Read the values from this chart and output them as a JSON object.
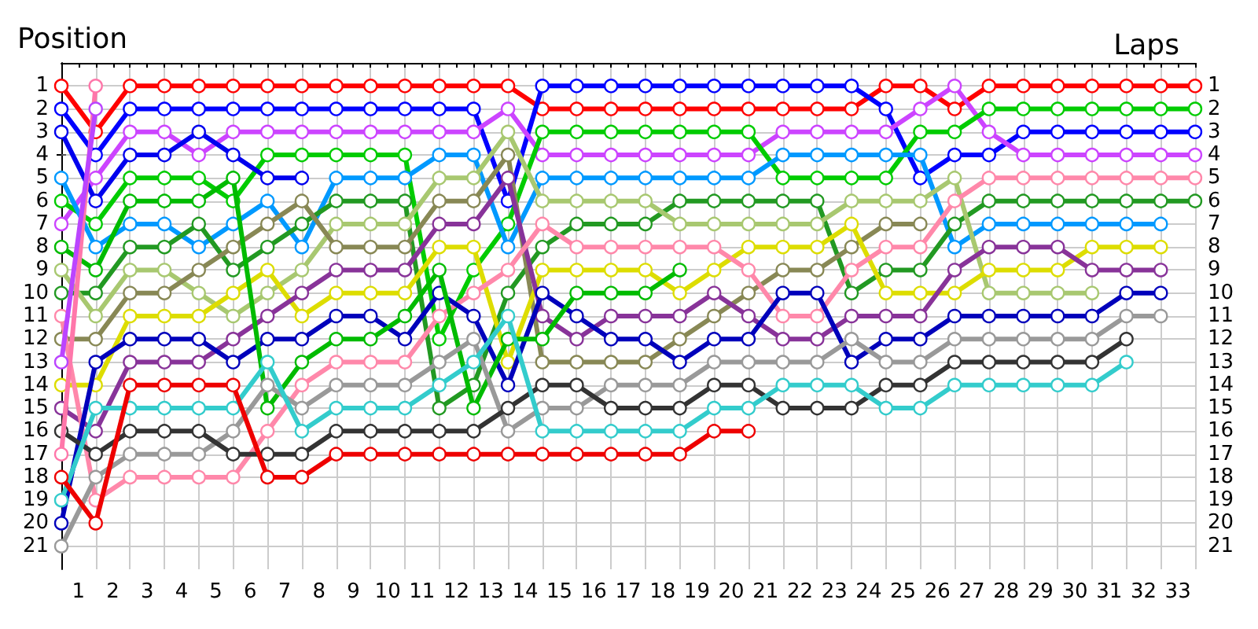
{
  "chart_data": {
    "type": "line",
    "xlabel": "Laps",
    "ylabel": "Position",
    "marker": "circle",
    "line_style": "solid",
    "grid": true,
    "x": [
      0,
      1,
      2,
      3,
      4,
      5,
      6,
      7,
      8,
      9,
      10,
      11,
      12,
      13,
      14,
      15,
      16,
      17,
      18,
      19,
      20,
      21,
      22,
      23,
      24,
      25,
      26,
      27,
      28,
      29,
      30,
      31,
      32,
      33
    ],
    "xlim": [
      0,
      33
    ],
    "xticks": [
      {
        "value": 0,
        "label": null
      },
      {
        "value": 0.5,
        "label": "1"
      },
      {
        "value": 1,
        "label": null
      },
      {
        "value": 1.5,
        "label": "2"
      },
      {
        "value": 2,
        "label": null
      },
      {
        "value": 2.5,
        "label": "3"
      },
      {
        "value": 3,
        "label": null
      },
      {
        "value": 3.5,
        "label": "4"
      },
      {
        "value": 4,
        "label": null
      },
      {
        "value": 4.5,
        "label": "5"
      },
      {
        "value": 5,
        "label": null
      },
      {
        "value": 5.5,
        "label": "6"
      },
      {
        "value": 6,
        "label": null
      },
      {
        "value": 6.5,
        "label": "7"
      },
      {
        "value": 7,
        "label": null
      },
      {
        "value": 7.5,
        "label": "8"
      },
      {
        "value": 8,
        "label": null
      },
      {
        "value": 8.5,
        "label": "9"
      },
      {
        "value": 9,
        "label": null
      },
      {
        "value": 9.5,
        "label": "10"
      },
      {
        "value": 10,
        "label": null
      },
      {
        "value": 10.5,
        "label": "11"
      },
      {
        "value": 11,
        "label": null
      },
      {
        "value": 11.5,
        "label": "12"
      },
      {
        "value": 12,
        "label": null
      },
      {
        "value": 12.5,
        "label": "13"
      },
      {
        "value": 13,
        "label": null
      },
      {
        "value": 13.5,
        "label": "14"
      },
      {
        "value": 14,
        "label": null
      },
      {
        "value": 14.5,
        "label": "15"
      },
      {
        "value": 15,
        "label": null
      },
      {
        "value": 15.5,
        "label": "16"
      },
      {
        "value": 16,
        "label": null
      },
      {
        "value": 16.5,
        "label": "17"
      },
      {
        "value": 17,
        "label": null
      },
      {
        "value": 17.5,
        "label": "18"
      },
      {
        "value": 18,
        "label": null
      },
      {
        "value": 18.5,
        "label": "19"
      },
      {
        "value": 19,
        "label": null
      },
      {
        "value": 19.5,
        "label": "20"
      },
      {
        "value": 20,
        "label": null
      },
      {
        "value": 20.5,
        "label": "21"
      },
      {
        "value": 21,
        "label": null
      },
      {
        "value": 21.5,
        "label": "22"
      },
      {
        "value": 22,
        "label": null
      },
      {
        "value": 22.5,
        "label": "23"
      },
      {
        "value": 23,
        "label": null
      },
      {
        "value": 23.5,
        "label": "24"
      },
      {
        "value": 24,
        "label": null
      },
      {
        "value": 24.5,
        "label": "25"
      },
      {
        "value": 25,
        "label": null
      },
      {
        "value": 25.5,
        "label": "26"
      },
      {
        "value": 26,
        "label": null
      },
      {
        "value": 26.5,
        "label": "27"
      },
      {
        "value": 27,
        "label": null
      },
      {
        "value": 27.5,
        "label": "28"
      },
      {
        "value": 28,
        "label": null
      },
      {
        "value": 28.5,
        "label": "29"
      },
      {
        "value": 29,
        "label": null
      },
      {
        "value": 29.5,
        "label": "30"
      },
      {
        "value": 30,
        "label": null
      },
      {
        "value": 30.5,
        "label": "31"
      },
      {
        "value": 31,
        "label": null
      },
      {
        "value": 31.5,
        "label": "32"
      },
      {
        "value": 32,
        "label": null
      },
      {
        "value": 32.5,
        "label": "33"
      },
      {
        "value": 33,
        "label": null
      }
    ],
    "ylim": [
      22,
      0
    ],
    "yticks": [
      1,
      2,
      3,
      4,
      5,
      6,
      7,
      8,
      9,
      10,
      11,
      12,
      13,
      14,
      15,
      16,
      17,
      18,
      19,
      20,
      21
    ],
    "y2lim": [
      22,
      0
    ],
    "y2ticks": [
      1,
      2,
      3,
      4,
      5,
      6,
      7,
      8,
      9,
      10,
      11,
      12,
      13,
      14,
      15,
      16,
      17,
      18,
      19,
      20,
      21
    ],
    "series": [
      {
        "color": "#ff0000",
        "values": [
          1,
          3,
          1,
          1,
          1,
          1,
          1,
          1,
          1,
          1,
          1,
          1,
          1,
          1,
          2,
          2,
          2,
          2,
          2,
          2,
          2,
          2,
          2,
          2,
          1,
          1,
          2,
          1,
          1,
          1,
          1,
          1,
          1,
          1
        ]
      },
      {
        "color": "#0000ff",
        "values": [
          2,
          4,
          2,
          2,
          2,
          2,
          2,
          2,
          2,
          2,
          2,
          2,
          2,
          6,
          1,
          1,
          1,
          1,
          1,
          1,
          1,
          1,
          1,
          1,
          2,
          5,
          4,
          4,
          3,
          3,
          3,
          3,
          3,
          3
        ]
      },
      {
        "color": "#cc44ff",
        "values": [
          7,
          5,
          3,
          3,
          4,
          3,
          3,
          3,
          3,
          3,
          3,
          3,
          3,
          2,
          4,
          4,
          4,
          4,
          4,
          4,
          4,
          3,
          3,
          3,
          3,
          2,
          1,
          3,
          4,
          4,
          4,
          4,
          4,
          4
        ]
      },
      {
        "color": "#00cc00",
        "values": [
          6,
          7,
          5,
          5,
          5,
          6,
          4,
          4,
          4,
          4,
          4,
          12,
          9,
          7,
          3,
          3,
          3,
          3,
          3,
          3,
          3,
          5,
          5,
          5,
          5,
          3,
          3,
          2,
          2,
          2,
          2,
          2,
          2,
          2
        ]
      },
      {
        "color": "#0099ff",
        "values": [
          5,
          8,
          7,
          7,
          8,
          7,
          6,
          8,
          5,
          5,
          5,
          4,
          4,
          8,
          5,
          5,
          5,
          5,
          5,
          5,
          5,
          4,
          4,
          4,
          4,
          4,
          8,
          7,
          7,
          7,
          7,
          7,
          7,
          null
        ]
      },
      {
        "color": "#229922",
        "values": [
          10,
          10,
          8,
          8,
          7,
          9,
          8,
          7,
          6,
          6,
          6,
          15,
          14,
          10,
          8,
          7,
          7,
          7,
          6,
          6,
          6,
          6,
          6,
          10,
          9,
          9,
          7,
          6,
          6,
          6,
          6,
          6,
          6,
          6
        ]
      },
      {
        "color": "#a8c870",
        "values": [
          9,
          11,
          9,
          9,
          10,
          11,
          10,
          9,
          7,
          7,
          7,
          5,
          5,
          3,
          6,
          6,
          6,
          6,
          7,
          7,
          7,
          7,
          7,
          6,
          6,
          6,
          5,
          10,
          10,
          10,
          10,
          null,
          null,
          null
        ]
      },
      {
        "color": "#888855",
        "values": [
          12,
          12,
          10,
          10,
          9,
          8,
          7,
          6,
          8,
          8,
          8,
          6,
          6,
          4,
          13,
          13,
          13,
          13,
          12,
          11,
          10,
          9,
          9,
          8,
          7,
          7,
          null,
          null,
          null,
          null,
          null,
          null,
          null,
          null
        ]
      },
      {
        "color": "#dddd00",
        "values": [
          14,
          14,
          11,
          11,
          11,
          10,
          9,
          11,
          10,
          10,
          10,
          8,
          8,
          13,
          9,
          9,
          9,
          9,
          10,
          9,
          8,
          8,
          8,
          7,
          10,
          10,
          10,
          9,
          9,
          9,
          8,
          8,
          8,
          null
        ]
      },
      {
        "color": "#883399",
        "values": [
          15,
          16,
          13,
          13,
          13,
          12,
          11,
          10,
          9,
          9,
          9,
          7,
          7,
          5,
          11,
          12,
          11,
          11,
          11,
          10,
          11,
          12,
          12,
          11,
          11,
          11,
          9,
          8,
          8,
          8,
          9,
          9,
          9,
          null
        ]
      },
      {
        "color": "#ff88aa",
        "values": [
          11,
          19,
          18,
          18,
          18,
          18,
          16,
          14,
          13,
          13,
          13,
          11,
          10,
          9,
          7,
          8,
          8,
          8,
          8,
          8,
          9,
          11,
          11,
          9,
          8,
          8,
          6,
          5,
          5,
          5,
          5,
          5,
          5,
          5
        ]
      },
      {
        "color": "#0000bb",
        "values": [
          20,
          13,
          12,
          12,
          12,
          13,
          12,
          12,
          11,
          11,
          12,
          10,
          11,
          14,
          10,
          11,
          12,
          12,
          13,
          12,
          12,
          10,
          10,
          13,
          12,
          12,
          11,
          11,
          11,
          11,
          11,
          10,
          10,
          null
        ]
      },
      {
        "color": "#00bb00",
        "values": [
          8,
          9,
          6,
          6,
          6,
          5,
          15,
          13,
          12,
          12,
          11,
          9,
          15,
          12,
          12,
          10,
          10,
          10,
          9,
          null,
          null,
          null,
          null,
          null,
          null,
          null,
          null,
          null,
          null,
          null,
          null,
          null,
          null,
          null
        ]
      },
      {
        "color": "#999999",
        "values": [
          21,
          18,
          17,
          17,
          17,
          16,
          14,
          15,
          14,
          14,
          14,
          13,
          12,
          16,
          15,
          15,
          14,
          14,
          14,
          13,
          13,
          13,
          13,
          12,
          13,
          13,
          12,
          12,
          12,
          12,
          12,
          11,
          11,
          null
        ]
      },
      {
        "color": "#333333",
        "values": [
          16,
          17,
          16,
          16,
          16,
          17,
          17,
          17,
          16,
          16,
          16,
          16,
          16,
          15,
          14,
          14,
          15,
          15,
          15,
          14,
          14,
          15,
          15,
          15,
          14,
          14,
          13,
          13,
          13,
          13,
          13,
          12,
          null,
          null
        ]
      },
      {
        "color": "#33cccc",
        "values": [
          19,
          15,
          15,
          15,
          15,
          15,
          13,
          16,
          15,
          15,
          15,
          14,
          13,
          11,
          16,
          16,
          16,
          16,
          16,
          15,
          15,
          14,
          14,
          14,
          15,
          15,
          14,
          14,
          14,
          14,
          14,
          13,
          null,
          null
        ]
      },
      {
        "color": "#ee0000",
        "values": [
          18,
          20,
          14,
          14,
          14,
          14,
          18,
          18,
          17,
          17,
          17,
          17,
          17,
          17,
          17,
          17,
          17,
          17,
          17,
          16,
          16,
          null,
          null,
          null,
          null,
          null,
          null,
          null,
          null,
          null,
          null,
          null,
          null,
          null
        ]
      },
      {
        "color": "#0000ee",
        "values": [
          3,
          6,
          4,
          4,
          3,
          4,
          5,
          5,
          null,
          null,
          null,
          null,
          null,
          null,
          null,
          null,
          null,
          null,
          null,
          null,
          null,
          null,
          null,
          null,
          null,
          null,
          null,
          null,
          null,
          null,
          null,
          null,
          null,
          null
        ]
      },
      {
        "color": "#ff77aa",
        "values": [
          17,
          1,
          null,
          null,
          null,
          null,
          null,
          null,
          null,
          null,
          null,
          null,
          null,
          null,
          null,
          null,
          null,
          null,
          null,
          null,
          null,
          null,
          null,
          null,
          null,
          null,
          null,
          null,
          null,
          null,
          null,
          null,
          null,
          null
        ]
      },
      {
        "color": "#bb44ff",
        "values": [
          13,
          2,
          null,
          null,
          null,
          null,
          null,
          null,
          null,
          null,
          null,
          null,
          null,
          null,
          null,
          null,
          null,
          null,
          null,
          null,
          null,
          null,
          null,
          null,
          null,
          null,
          null,
          null,
          null,
          null,
          null,
          null,
          null,
          null
        ]
      }
    ]
  }
}
